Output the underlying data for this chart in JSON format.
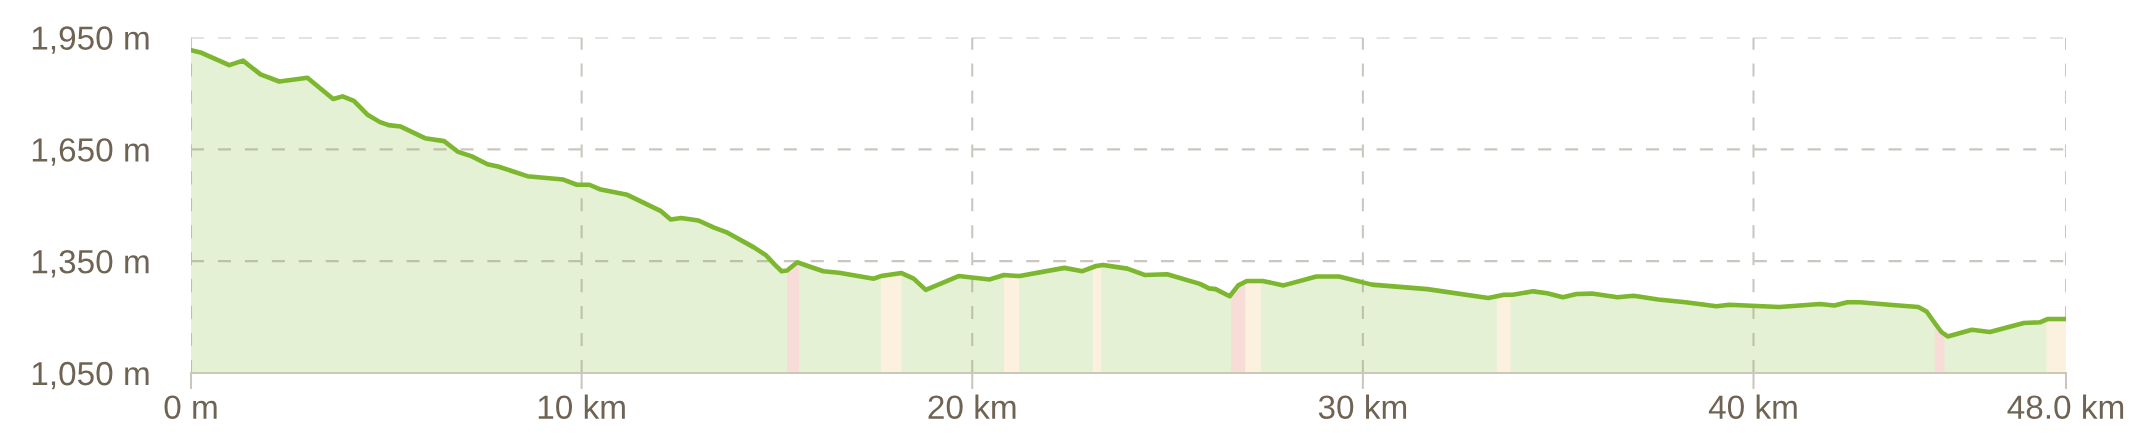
{
  "chart_data": {
    "type": "area",
    "x": [
      0,
      0.27,
      0.98,
      1.33,
      1.78,
      2.26,
      2.98,
      3.64,
      3.88,
      4.17,
      4.53,
      4.84,
      5.06,
      5.37,
      5.99,
      6.48,
      6.84,
      7.19,
      7.59,
      7.86,
      8.61,
      9.53,
      9.88,
      10.2,
      10.46,
      11.17,
      12.02,
      12.28,
      12.55,
      12.99,
      13.39,
      13.7,
      14.41,
      14.72,
      14.95,
      15.12,
      15.26,
      15.52,
      15.79,
      16.19,
      16.59,
      17.48,
      17.66,
      18.19,
      18.5,
      18.81,
      19.65,
      20.45,
      20.81,
      21.21,
      22.36,
      22.82,
      23.17,
      23.35,
      23.97,
      24.41,
      24.99,
      25.83,
      26.06,
      26.23,
      26.59,
      26.81,
      27.03,
      27.43,
      27.97,
      28.81,
      29.39,
      30.23,
      31.65,
      33.21,
      33.61,
      33.83,
      34.36,
      34.72,
      35.12,
      35.47,
      35.86,
      36.52,
      36.93,
      37.56,
      38.26,
      39.05,
      39.38,
      40.66,
      41.7,
      42.07,
      42.4,
      42.73,
      43.48,
      44.22,
      44.43,
      44.64,
      44.81,
      44.97,
      45.59,
      46.05,
      46.92,
      47.33,
      47.54,
      48.0
    ],
    "series": [
      {
        "color": "#7db72f",
        "values": [
          1916,
          1909,
          1876,
          1888,
          1851,
          1832,
          1842,
          1785,
          1792,
          1780,
          1742,
          1723,
          1715,
          1711,
          1680,
          1672,
          1643,
          1631,
          1610,
          1604,
          1578,
          1569,
          1555,
          1555,
          1543,
          1528,
          1485,
          1462,
          1466,
          1459,
          1440,
          1428,
          1387,
          1366,
          1340,
          1323,
          1325,
          1347,
          1337,
          1323,
          1319,
          1303,
          1310,
          1318,
          1303,
          1273,
          1310,
          1301,
          1313,
          1310,
          1332,
          1323,
          1337,
          1340,
          1330,
          1313,
          1315,
          1289,
          1277,
          1275,
          1256,
          1285,
          1297,
          1297,
          1285,
          1309,
          1309,
          1287,
          1275,
          1251,
          1260,
          1260,
          1269,
          1264,
          1253,
          1262,
          1263,
          1253,
          1257,
          1247,
          1240,
          1229,
          1233,
          1227,
          1235,
          1231,
          1240,
          1240,
          1233,
          1227,
          1215,
          1184,
          1160,
          1148,
          1166,
          1160,
          1184,
          1186,
          1195,
          1195
        ]
      }
    ],
    "xlim": [
      0,
      48.0
    ],
    "xticks": [
      {
        "value": 0,
        "label": "0 m"
      },
      {
        "value": 10,
        "label": "10 km"
      },
      {
        "value": 20,
        "label": "20 km"
      },
      {
        "value": 30,
        "label": "30 km"
      },
      {
        "value": 40,
        "label": "40 km"
      },
      {
        "value": 48.0,
        "label": "48.0 km"
      }
    ],
    "ylim": [
      1050,
      1950
    ],
    "yticks": [
      {
        "value": 1050,
        "label": "1,050 m"
      },
      {
        "value": 1350,
        "label": "1,350 m"
      },
      {
        "value": 1650,
        "label": "1,650 m"
      },
      {
        "value": 1950,
        "label": "1,950 m"
      }
    ],
    "grid": true,
    "bands": [
      {
        "axis": "x",
        "from": 15.26,
        "to": 15.57,
        "color": "#f8dcd8"
      },
      {
        "axis": "x",
        "from": 17.66,
        "to": 18.19,
        "color": "#fcf0de"
      },
      {
        "axis": "x",
        "from": 20.81,
        "to": 21.21,
        "color": "#fcf0de"
      },
      {
        "axis": "x",
        "from": 23.08,
        "to": 23.3,
        "color": "#fcf0de"
      },
      {
        "axis": "x",
        "from": 26.63,
        "to": 26.99,
        "color": "#f8dcd8"
      },
      {
        "axis": "x",
        "from": 26.99,
        "to": 27.39,
        "color": "#fcf0de"
      },
      {
        "axis": "x",
        "from": 33.43,
        "to": 33.78,
        "color": "#fcf0de"
      },
      {
        "axis": "x",
        "from": 44.64,
        "to": 44.89,
        "color": "#f8dcd8"
      },
      {
        "axis": "x",
        "from": 47.5,
        "to": 48.0,
        "color": "#fcf0de"
      }
    ]
  }
}
